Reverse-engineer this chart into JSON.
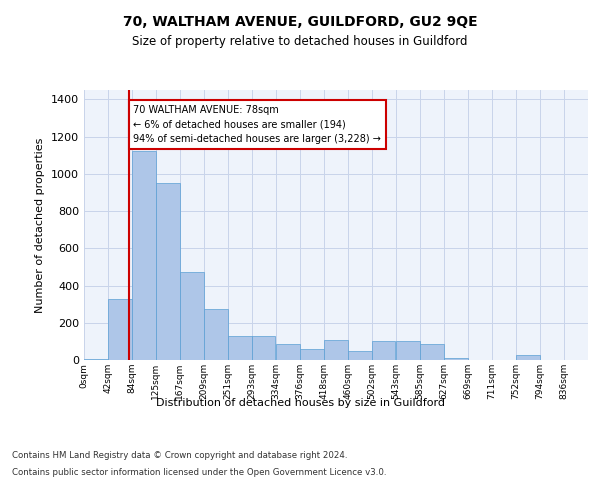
{
  "title": "70, WALTHAM AVENUE, GUILDFORD, GU2 9QE",
  "subtitle": "Size of property relative to detached houses in Guildford",
  "xlabel": "Distribution of detached houses by size in Guildford",
  "ylabel": "Number of detached properties",
  "bar_color": "#aec6e8",
  "bar_edge_color": "#5a9fd4",
  "background_color": "#eef3fb",
  "annotation_box_color": "#cc0000",
  "annotation_text": "70 WALTHAM AVENUE: 78sqm\n← 6% of detached houses are smaller (194)\n94% of semi-detached houses are larger (3,228) →",
  "marker_line_color": "#cc0000",
  "marker_x": 78,
  "footer1": "Contains HM Land Registry data © Crown copyright and database right 2024.",
  "footer2": "Contains public sector information licensed under the Open Government Licence v3.0.",
  "categories": [
    "0sqm",
    "42sqm",
    "84sqm",
    "125sqm",
    "167sqm",
    "209sqm",
    "251sqm",
    "293sqm",
    "334sqm",
    "376sqm",
    "418sqm",
    "460sqm",
    "502sqm",
    "543sqm",
    "585sqm",
    "627sqm",
    "669sqm",
    "711sqm",
    "752sqm",
    "794sqm",
    "836sqm"
  ],
  "bar_lefts": [
    0,
    42,
    84,
    125,
    167,
    209,
    251,
    293,
    334,
    376,
    418,
    460,
    502,
    543,
    585,
    627,
    669,
    711,
    752,
    794,
    836
  ],
  "bar_widths": [
    42,
    42,
    41,
    42,
    42,
    42,
    42,
    41,
    42,
    42,
    42,
    42,
    41,
    42,
    42,
    42,
    42,
    41,
    42,
    42,
    42
  ],
  "values": [
    5,
    325,
    1120,
    950,
    470,
    275,
    130,
    130,
    85,
    60,
    105,
    50,
    100,
    100,
    85,
    10,
    0,
    0,
    25,
    0,
    0
  ],
  "ylim": [
    0,
    1450
  ],
  "yticks": [
    0,
    200,
    400,
    600,
    800,
    1000,
    1200,
    1400
  ],
  "xlim": [
    0,
    878
  ]
}
